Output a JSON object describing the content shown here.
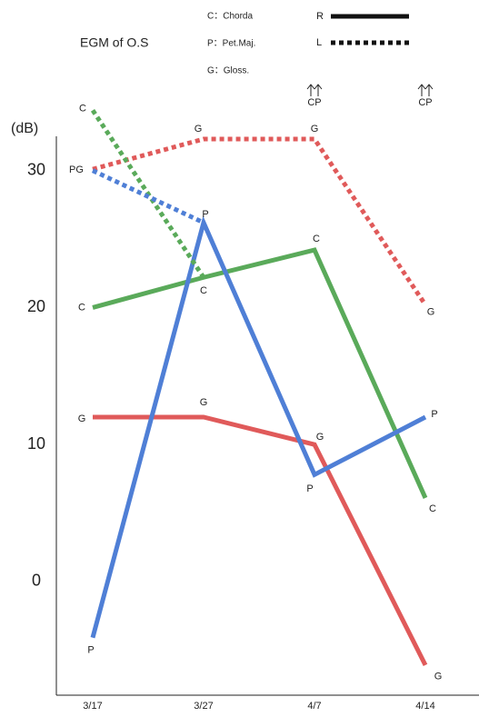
{
  "chart_data": {
    "type": "line",
    "title": "EGM of  O.S",
    "y_label": "(dB)",
    "key": [
      "C：Chorda",
      "P：Pet.Maj.",
      "G：Gloss."
    ],
    "legend": [
      {
        "label": "R",
        "dashed": false
      },
      {
        "label": "L",
        "dashed": true
      }
    ],
    "categories": [
      "3/17",
      "3/27",
      "4/7",
      "4/14"
    ],
    "ylim": [
      -8.3,
      32.5
    ],
    "yticks": [
      0,
      10,
      20,
      30
    ],
    "grid": false,
    "series": [
      {
        "color": "#e05a5a",
        "dashed": false,
        "values": [
          12,
          12,
          10,
          -6.1
        ],
        "point_labels": [
          "G",
          "G",
          "G",
          "G"
        ]
      },
      {
        "color": "#5aaa5a",
        "dashed": false,
        "values": [
          20,
          22.2,
          24.2,
          6.1
        ],
        "point_labels": [
          "C",
          null,
          "C",
          "C"
        ]
      },
      {
        "color": "#4f7fd6",
        "dashed": false,
        "values": [
          -4.1,
          26.2,
          7.8,
          12
        ],
        "point_labels": [
          "P",
          "P",
          "P",
          "P"
        ]
      },
      {
        "color": "#e05a5a",
        "dashed": true,
        "values": [
          30.1,
          32.3,
          32.3,
          20.2
        ],
        "point_labels": [
          "PG",
          "G",
          "G",
          "G"
        ]
      },
      {
        "color": "#5aaa5a",
        "dashed": true,
        "values": [
          34.4,
          22.2,
          null,
          null
        ],
        "point_labels": [
          "C",
          "C",
          null,
          null
        ]
      },
      {
        "color": "#4f7fd6",
        "dashed": true,
        "values": [
          30,
          26.2,
          null,
          null
        ]
      }
    ],
    "annotations": [
      {
        "text": "CP",
        "category": 2
      },
      {
        "text": "CP",
        "category": 3
      }
    ]
  }
}
